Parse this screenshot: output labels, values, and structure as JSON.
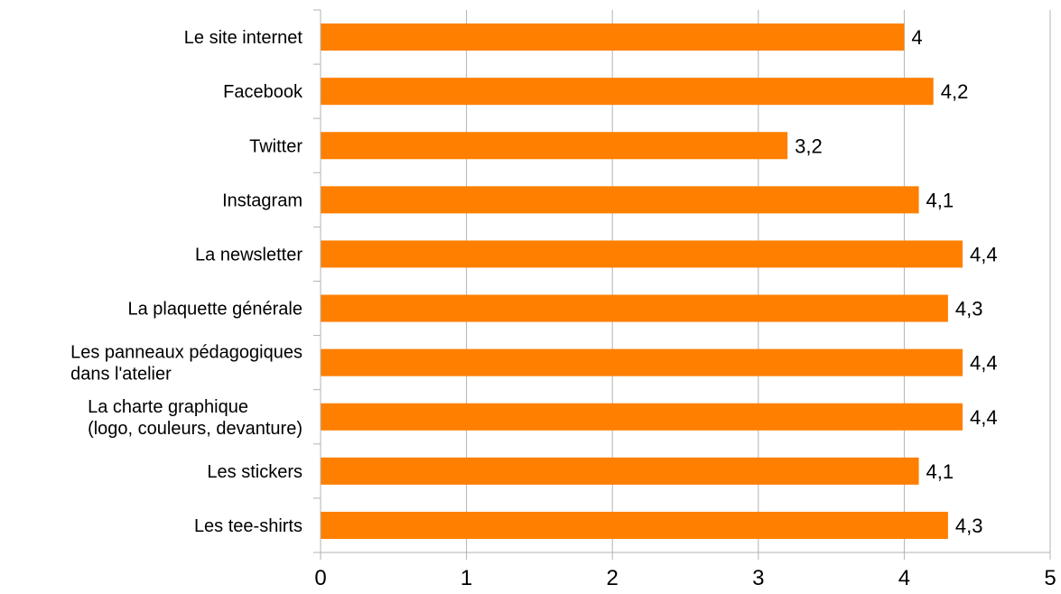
{
  "chart_data": {
    "type": "bar",
    "orientation": "horizontal",
    "categories": [
      [
        "Le site internet"
      ],
      [
        "Facebook"
      ],
      [
        "Twitter"
      ],
      [
        "Instagram"
      ],
      [
        "La newsletter"
      ],
      [
        "La plaquette générale"
      ],
      [
        "Les panneaux pédagogiques",
        "dans l'atelier"
      ],
      [
        "La charte graphique",
        "(logo, couleurs, devanture)"
      ],
      [
        "Les stickers"
      ],
      [
        "Les tee-shirts"
      ]
    ],
    "values": [
      4,
      4.2,
      3.2,
      4.1,
      4.4,
      4.3,
      4.4,
      4.4,
      4.1,
      4.3
    ],
    "value_labels": [
      "4",
      "4,2",
      "3,2",
      "4,1",
      "4,4",
      "4,3",
      "4,4",
      "4,4",
      "4,1",
      "4,3"
    ],
    "xticks": [
      "0",
      "1",
      "2",
      "3",
      "4",
      "5"
    ],
    "xlim": [
      0,
      5
    ],
    "grid": "vertical",
    "legend": "none",
    "bar_color": "#ff7f00",
    "grid_color": "#b3b3b3",
    "axis_color": "#b3b3b3"
  }
}
